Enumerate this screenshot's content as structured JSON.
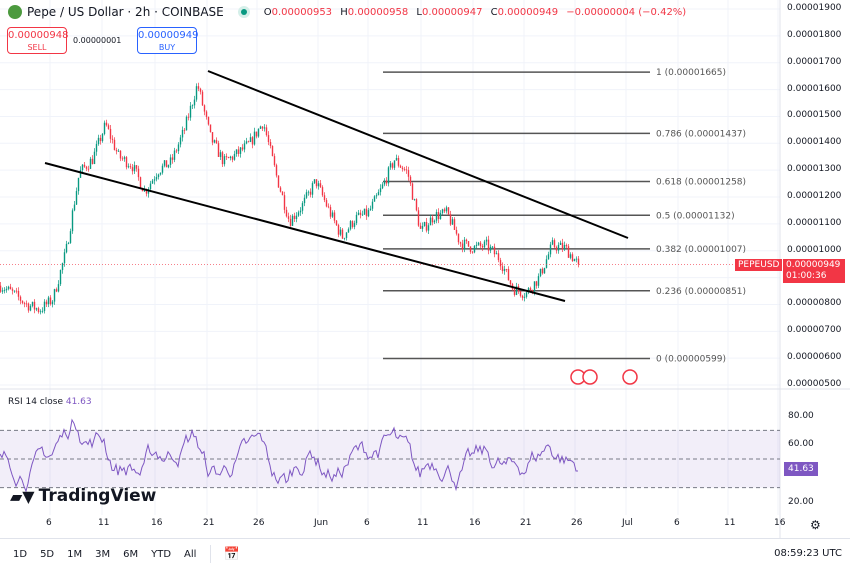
{
  "header": {
    "title": "Pepe / US Dollar · 2h · COINBASE",
    "open_label": "O",
    "open": "0.00000953",
    "high_label": "H",
    "high": "0.00000958",
    "low_label": "L",
    "low": "0.00000947",
    "close_label": "C",
    "close": "0.00000949",
    "change": "−0.00000004 (−0.42%)"
  },
  "trade": {
    "sell_price": "0.00000948",
    "sell_label": "SELL",
    "spread": "0.00000001",
    "buy_price": "0.00000949",
    "buy_label": "BUY"
  },
  "price_axis": [
    "0.00001900",
    "0.00001800",
    "0.00001700",
    "0.00001600",
    "0.00001500",
    "0.00001400",
    "0.00001300",
    "0.00001200",
    "0.00001100",
    "0.00001000",
    "0.00000800",
    "0.00000700",
    "0.00000600",
    "0.00000500"
  ],
  "price_axis_values": [
    19,
    18,
    17,
    16,
    15,
    14,
    13,
    12,
    11,
    10,
    8,
    7,
    6,
    5
  ],
  "current": {
    "symbol": "PEPEUSD",
    "price": "0.00000949",
    "countdown": "01:00:36"
  },
  "fib": [
    {
      "label": "1 (0.00001665)",
      "value": 16.65
    },
    {
      "label": "0.786 (0.00001437)",
      "value": 14.37
    },
    {
      "label": "0.618 (0.00001258)",
      "value": 12.58
    },
    {
      "label": "0.5 (0.00001132)",
      "value": 11.32
    },
    {
      "label": "0.382 (0.00001007)",
      "value": 10.07
    },
    {
      "label": "0.236 (0.00000851)",
      "value": 8.51
    },
    {
      "label": "0 (0.00000599)",
      "value": 5.99
    }
  ],
  "rsi": {
    "label": "RSI 14 close",
    "value": "41.63",
    "axis": [
      "80.00",
      "60.00",
      "20.00"
    ],
    "color": "#7e57c2"
  },
  "date_axis": [
    "6",
    "11",
    "16",
    "21",
    "26",
    "Jun",
    "6",
    "11",
    "16",
    "21",
    "26",
    "Jul",
    "6",
    "11",
    "16"
  ],
  "timeframes": [
    "1D",
    "5D",
    "1M",
    "3M",
    "6M",
    "YTD",
    "All"
  ],
  "clock": "08:59:23 UTC",
  "brand": "TradingView",
  "colors": {
    "up": "#089981",
    "down": "#f23645",
    "accent": "#2962ff"
  },
  "chart_data": {
    "type": "candlestick",
    "unit": "price (×1e-6 USD)",
    "close_path": [
      8.7,
      8.4,
      8.0,
      7.8,
      8.2,
      10,
      12.9,
      13.4,
      14.7,
      13.5,
      13.2,
      12.2,
      13.0,
      13.3,
      14.5,
      16.2,
      14.2,
      13.3,
      13.6,
      14.0,
      14.8,
      12.8,
      11.1,
      11.7,
      12.6,
      11.5,
      10.5,
      11.2,
      11.4,
      12.3,
      13.4,
      12.9,
      10.7,
      11.3,
      11.4,
      10.3,
      10.1,
      10.2,
      9.7,
      8.6,
      8.4,
      9.0,
      10.2,
      10.1,
      9.49
    ]
  }
}
